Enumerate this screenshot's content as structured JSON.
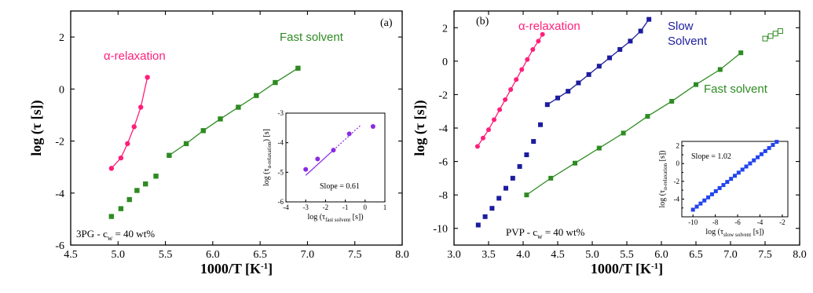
{
  "chart_data": [
    {
      "type": "scatter",
      "panel_tag": "(a)",
      "xlabel_main": "1000/T [K",
      "xlabel_sup": "-1",
      "xlabel_tail": "]",
      "ylabel": "log (τ [s])",
      "xlim": [
        4.5,
        8.0
      ],
      "ylim": [
        -6,
        3
      ],
      "x_ticks": [
        4.5,
        5.0,
        5.5,
        6.0,
        6.5,
        7.0,
        7.5,
        8.0
      ],
      "x_tick_labels": [
        "4.5",
        "5.0",
        "5.5",
        "6.0",
        "6.5",
        "7.0",
        "7.5",
        "8.0"
      ],
      "y_ticks": [
        -6,
        -4,
        -2,
        0,
        2
      ],
      "y_tick_labels": [
        "-6",
        "-4",
        "-2",
        "0",
        "2"
      ],
      "annotation_main": "3PG - c",
      "annotation_sub": "w",
      "annotation_tail": " = 40 wt%",
      "series": [
        {
          "name": "α-relaxation",
          "color": "#ff1f7a",
          "marker": "circle",
          "line": true,
          "x": [
            4.93,
            5.03,
            5.1,
            5.17,
            5.24,
            5.31
          ],
          "y": [
            -3.05,
            -2.65,
            -2.1,
            -1.45,
            -0.7,
            0.45
          ]
        },
        {
          "name": "Fast solvent",
          "color": "#2e8b22",
          "marker": "square",
          "line": true,
          "x": [
            5.54,
            5.72,
            5.9,
            6.08,
            6.27,
            6.46,
            6.66,
            6.9
          ],
          "y": [
            -2.55,
            -2.1,
            -1.6,
            -1.15,
            -0.7,
            -0.25,
            0.25,
            0.8
          ]
        },
        {
          "name": "",
          "color": "#2e8b22",
          "marker": "square",
          "line": false,
          "x": [
            4.93,
            5.03,
            5.12,
            5.2,
            5.29,
            5.4
          ],
          "y": [
            -4.9,
            -4.6,
            -4.25,
            -3.9,
            -3.65,
            -3.35
          ]
        }
      ],
      "inset": {
        "type": "scatter",
        "xlabel_main": "log (τ",
        "xlabel_sub": "fast solvent",
        "xlabel_tail": " [s])",
        "ylabel_main": "log (τ",
        "ylabel_sub": "α-relaxation",
        "ylabel_tail": ") [s]",
        "xlim": [
          -4,
          1
        ],
        "ylim": [
          -6,
          -3
        ],
        "x_ticks": [
          -4,
          -3,
          -2,
          -1,
          0,
          1
        ],
        "x_tick_labels": [
          "-4",
          "-3",
          "-2",
          "-1",
          "0",
          "1"
        ],
        "y_ticks": [
          -6,
          -5,
          -4,
          -3
        ],
        "y_tick_labels": [
          "-6",
          "-5",
          "-4",
          "-3"
        ],
        "annotation": "Slope = 0.61",
        "color": "#8a2be2",
        "points": {
          "x": [
            -3.0,
            -2.4,
            -1.6,
            -0.8,
            0.4
          ],
          "y": [
            -4.9,
            -4.55,
            -4.25,
            -3.7,
            -3.45
          ]
        },
        "fit_x": [
          -3.0,
          -1.6
        ],
        "fit_dotted_x": [
          -1.6,
          -0.2
        ],
        "slope": 0.61
      }
    },
    {
      "type": "scatter",
      "panel_tag": "(b)",
      "xlabel_main": "1000/T [K",
      "xlabel_sup": "-1",
      "xlabel_tail": "]",
      "ylabel": "log (τ [s])",
      "xlim": [
        3.0,
        8.0
      ],
      "ylim": [
        -11,
        3
      ],
      "x_ticks": [
        3.0,
        3.5,
        4.0,
        4.5,
        5.0,
        5.5,
        6.0,
        6.5,
        7.0,
        7.5,
        8.0
      ],
      "x_tick_labels": [
        "3.0",
        "3.5",
        "4.0",
        "4.5",
        "5.0",
        "5.5",
        "6.0",
        "6.5",
        "7.0",
        "7.5",
        "8.0"
      ],
      "y_ticks": [
        -10,
        -8,
        -6,
        -4,
        -2,
        0,
        2
      ],
      "y_tick_labels": [
        "-10",
        "-8",
        "-6",
        "-4",
        "-2",
        "0",
        "2"
      ],
      "annotation_main": "PVP - c",
      "annotation_sub": "w",
      "annotation_tail": " = 40 wt%",
      "series": [
        {
          "name": "α-relaxation",
          "color": "#ff1f7a",
          "marker": "circle",
          "line": true,
          "x": [
            3.34,
            3.42,
            3.5,
            3.58,
            3.66,
            3.74,
            3.82,
            3.9,
            3.98,
            4.06,
            4.14,
            4.22,
            4.28
          ],
          "y": [
            -5.1,
            -4.6,
            -4.1,
            -3.5,
            -2.9,
            -2.3,
            -1.7,
            -1.1,
            -0.5,
            0.1,
            0.7,
            1.2,
            1.6
          ]
        },
        {
          "name": "Slow Solvent",
          "color": "#1c1c9e",
          "marker": "square",
          "line": true,
          "x": [
            4.35,
            4.5,
            4.65,
            4.8,
            4.95,
            5.1,
            5.25,
            5.4,
            5.55,
            5.7,
            5.82
          ],
          "y": [
            -2.6,
            -2.2,
            -1.8,
            -1.3,
            -0.8,
            -0.3,
            0.2,
            0.7,
            1.2,
            1.8,
            2.5
          ]
        },
        {
          "name": "",
          "color": "#1c1c9e",
          "marker": "square",
          "line": false,
          "x": [
            3.35,
            3.45,
            3.55,
            3.65,
            3.75,
            3.85,
            3.95,
            4.05,
            4.15,
            4.25
          ],
          "y": [
            -9.8,
            -9.3,
            -8.8,
            -8.2,
            -7.6,
            -7.0,
            -6.3,
            -5.6,
            -4.8,
            -3.8
          ]
        },
        {
          "name": "Fast solvent",
          "color": "#2e8b22",
          "marker": "square",
          "line": true,
          "x": [
            4.05,
            4.4,
            4.75,
            5.1,
            5.45,
            5.8,
            6.15,
            6.5,
            6.85,
            7.15
          ],
          "y": [
            -8.0,
            -7.0,
            -6.1,
            -5.2,
            -4.3,
            -3.3,
            -2.4,
            -1.4,
            -0.5,
            0.5
          ]
        },
        {
          "name": "",
          "color": "#2e8b22",
          "marker": "open-square",
          "line": false,
          "x": [
            7.5,
            7.58,
            7.65,
            7.72
          ],
          "y": [
            1.35,
            1.5,
            1.65,
            1.8
          ]
        }
      ],
      "inset": {
        "type": "scatter",
        "xlabel_main": "log (τ",
        "xlabel_sub": "slow solvent",
        "xlabel_tail": " [s])",
        "ylabel_main": "log (τ",
        "ylabel_sub": "α-relaxation",
        "ylabel_tail": " [s])",
        "xlim": [
          -11,
          -1.5
        ],
        "ylim": [
          -6,
          2.5
        ],
        "x_ticks": [
          -10,
          -8,
          -6,
          -4,
          -2
        ],
        "x_tick_labels": [
          "-10",
          "-8",
          "-6",
          "-4",
          "-2"
        ],
        "y_ticks": [
          -4,
          -2,
          0,
          2
        ],
        "y_tick_labels": [
          "-4",
          "-2",
          "0",
          "2"
        ],
        "extra_y_ticks": [
          -5,
          -3,
          -1,
          1
        ],
        "extra_y_tick_labels": [
          "-5",
          "-3",
          "-1",
          "1"
        ],
        "annotation": "Slope = 1.02",
        "color": "#2244ee",
        "fit_x": [
          -10,
          -2.5
        ],
        "slope": 1.02
      }
    }
  ]
}
